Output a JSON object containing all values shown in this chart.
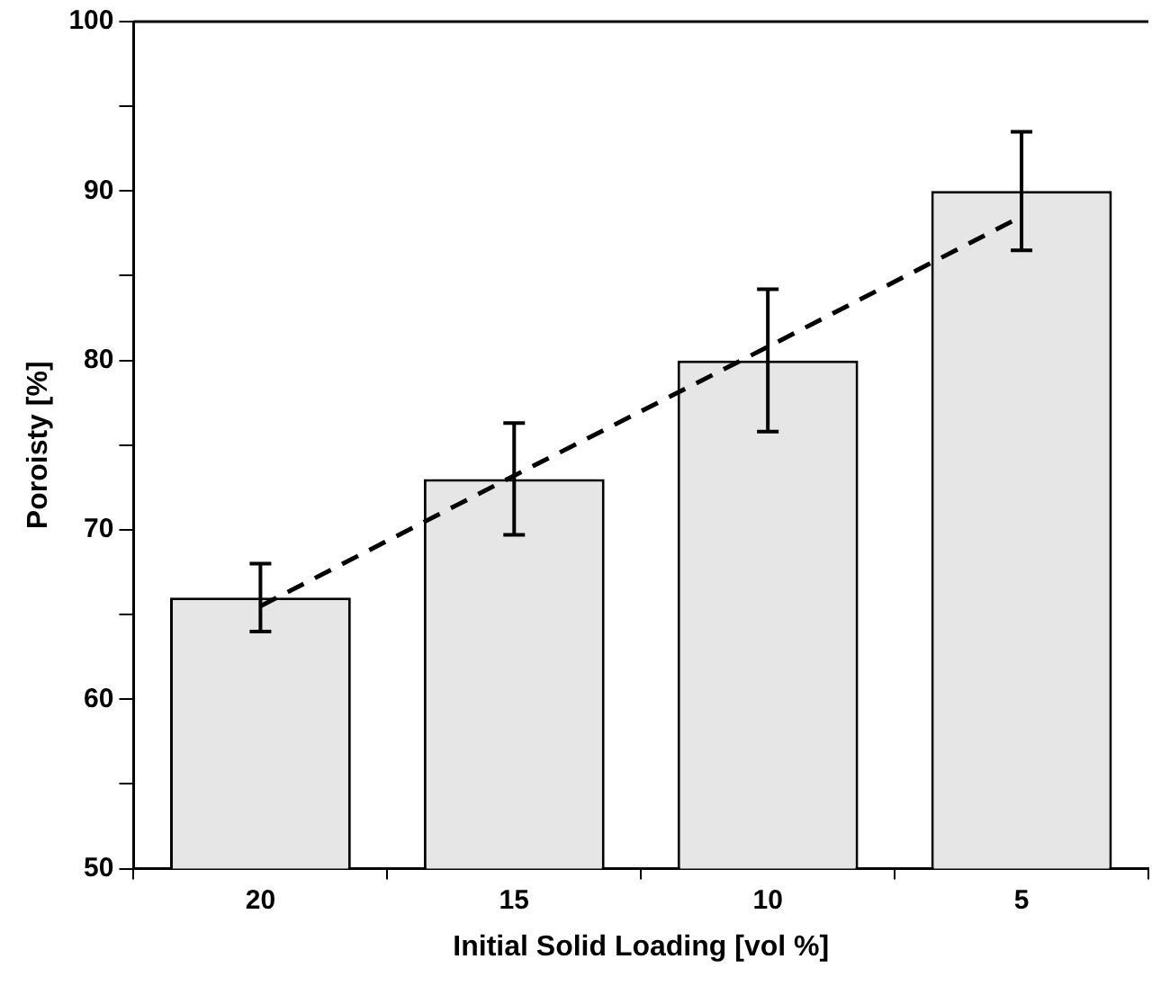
{
  "chart_data": {
    "type": "bar",
    "xlabel": "Initial Solid Loading [vol %]",
    "ylabel": "Poroisty [%]",
    "categories": [
      "20",
      "15",
      "10",
      "5"
    ],
    "series": [
      {
        "color": "#e6e6e6",
        "values": [
          66,
          73,
          80,
          90
        ],
        "errors": [
          2,
          3.3,
          4.2,
          3.5
        ]
      },
      {
        "type": "line",
        "color": "#000000",
        "line_style": "dashed",
        "marker": "none",
        "values": [
          65.5,
          73.2,
          80.8,
          88.5
        ]
      }
    ],
    "ylim": [
      50,
      100
    ],
    "yticks": [
      50,
      {
        "value": 55,
        "label": null
      },
      60,
      {
        "value": 65,
        "label": null
      },
      70,
      {
        "value": 75,
        "label": null
      },
      80,
      {
        "value": 85,
        "label": null
      },
      90,
      {
        "value": 95,
        "label": null
      },
      100
    ],
    "grid": false,
    "legend": false
  }
}
